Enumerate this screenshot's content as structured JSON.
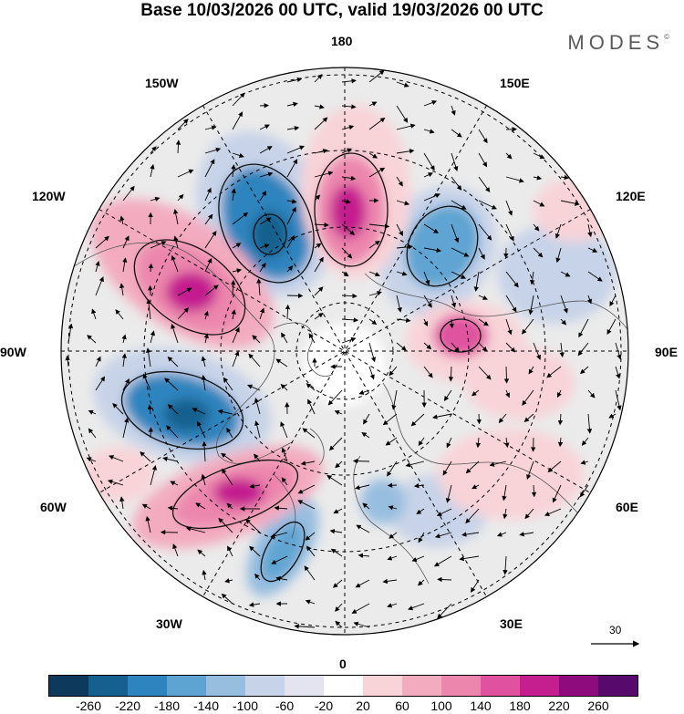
{
  "title": "Base 10/03/2026 00 UTC, valid 19/03/2026 00 UTC",
  "brand": {
    "name": "MODES",
    "mark": "©"
  },
  "longitude_labels": {
    "lon_180": "180",
    "lon_150e": "150E",
    "lon_120e": "120E",
    "lon_90e": "90E",
    "lon_60e": "60E",
    "lon_30e": "30E",
    "lon_0": "0",
    "lon_30w": "30W",
    "lon_60w": "60W",
    "lon_90w": "90W",
    "lon_120w": "120W",
    "lon_150w": "150W"
  },
  "wind_reference": {
    "value": "30",
    "icon": "arrow-right-icon"
  },
  "colorbar": {
    "colors": [
      "#0d3a5c",
      "#15608f",
      "#2d84be",
      "#5ea4d2",
      "#98bedf",
      "#c7d3e8",
      "#e4e3f0",
      "#ffffff",
      "#f8d3d8",
      "#f3acbf",
      "#ec86ad",
      "#e0529f",
      "#c41e8f",
      "#8e0b7d",
      "#580a6c"
    ],
    "ticks": [
      "-260",
      "-220",
      "-180",
      "-140",
      "-100",
      "-60",
      "-20",
      "20",
      "60",
      "100",
      "140",
      "180",
      "220",
      "260"
    ]
  },
  "anomaly_colors": {
    "strong_negative": "#2d84be",
    "weak_negative": "#c7d3e8",
    "strong_positive": "#c41e8f",
    "weak_positive": "#f3acbf",
    "land": "#ebebeb"
  }
}
